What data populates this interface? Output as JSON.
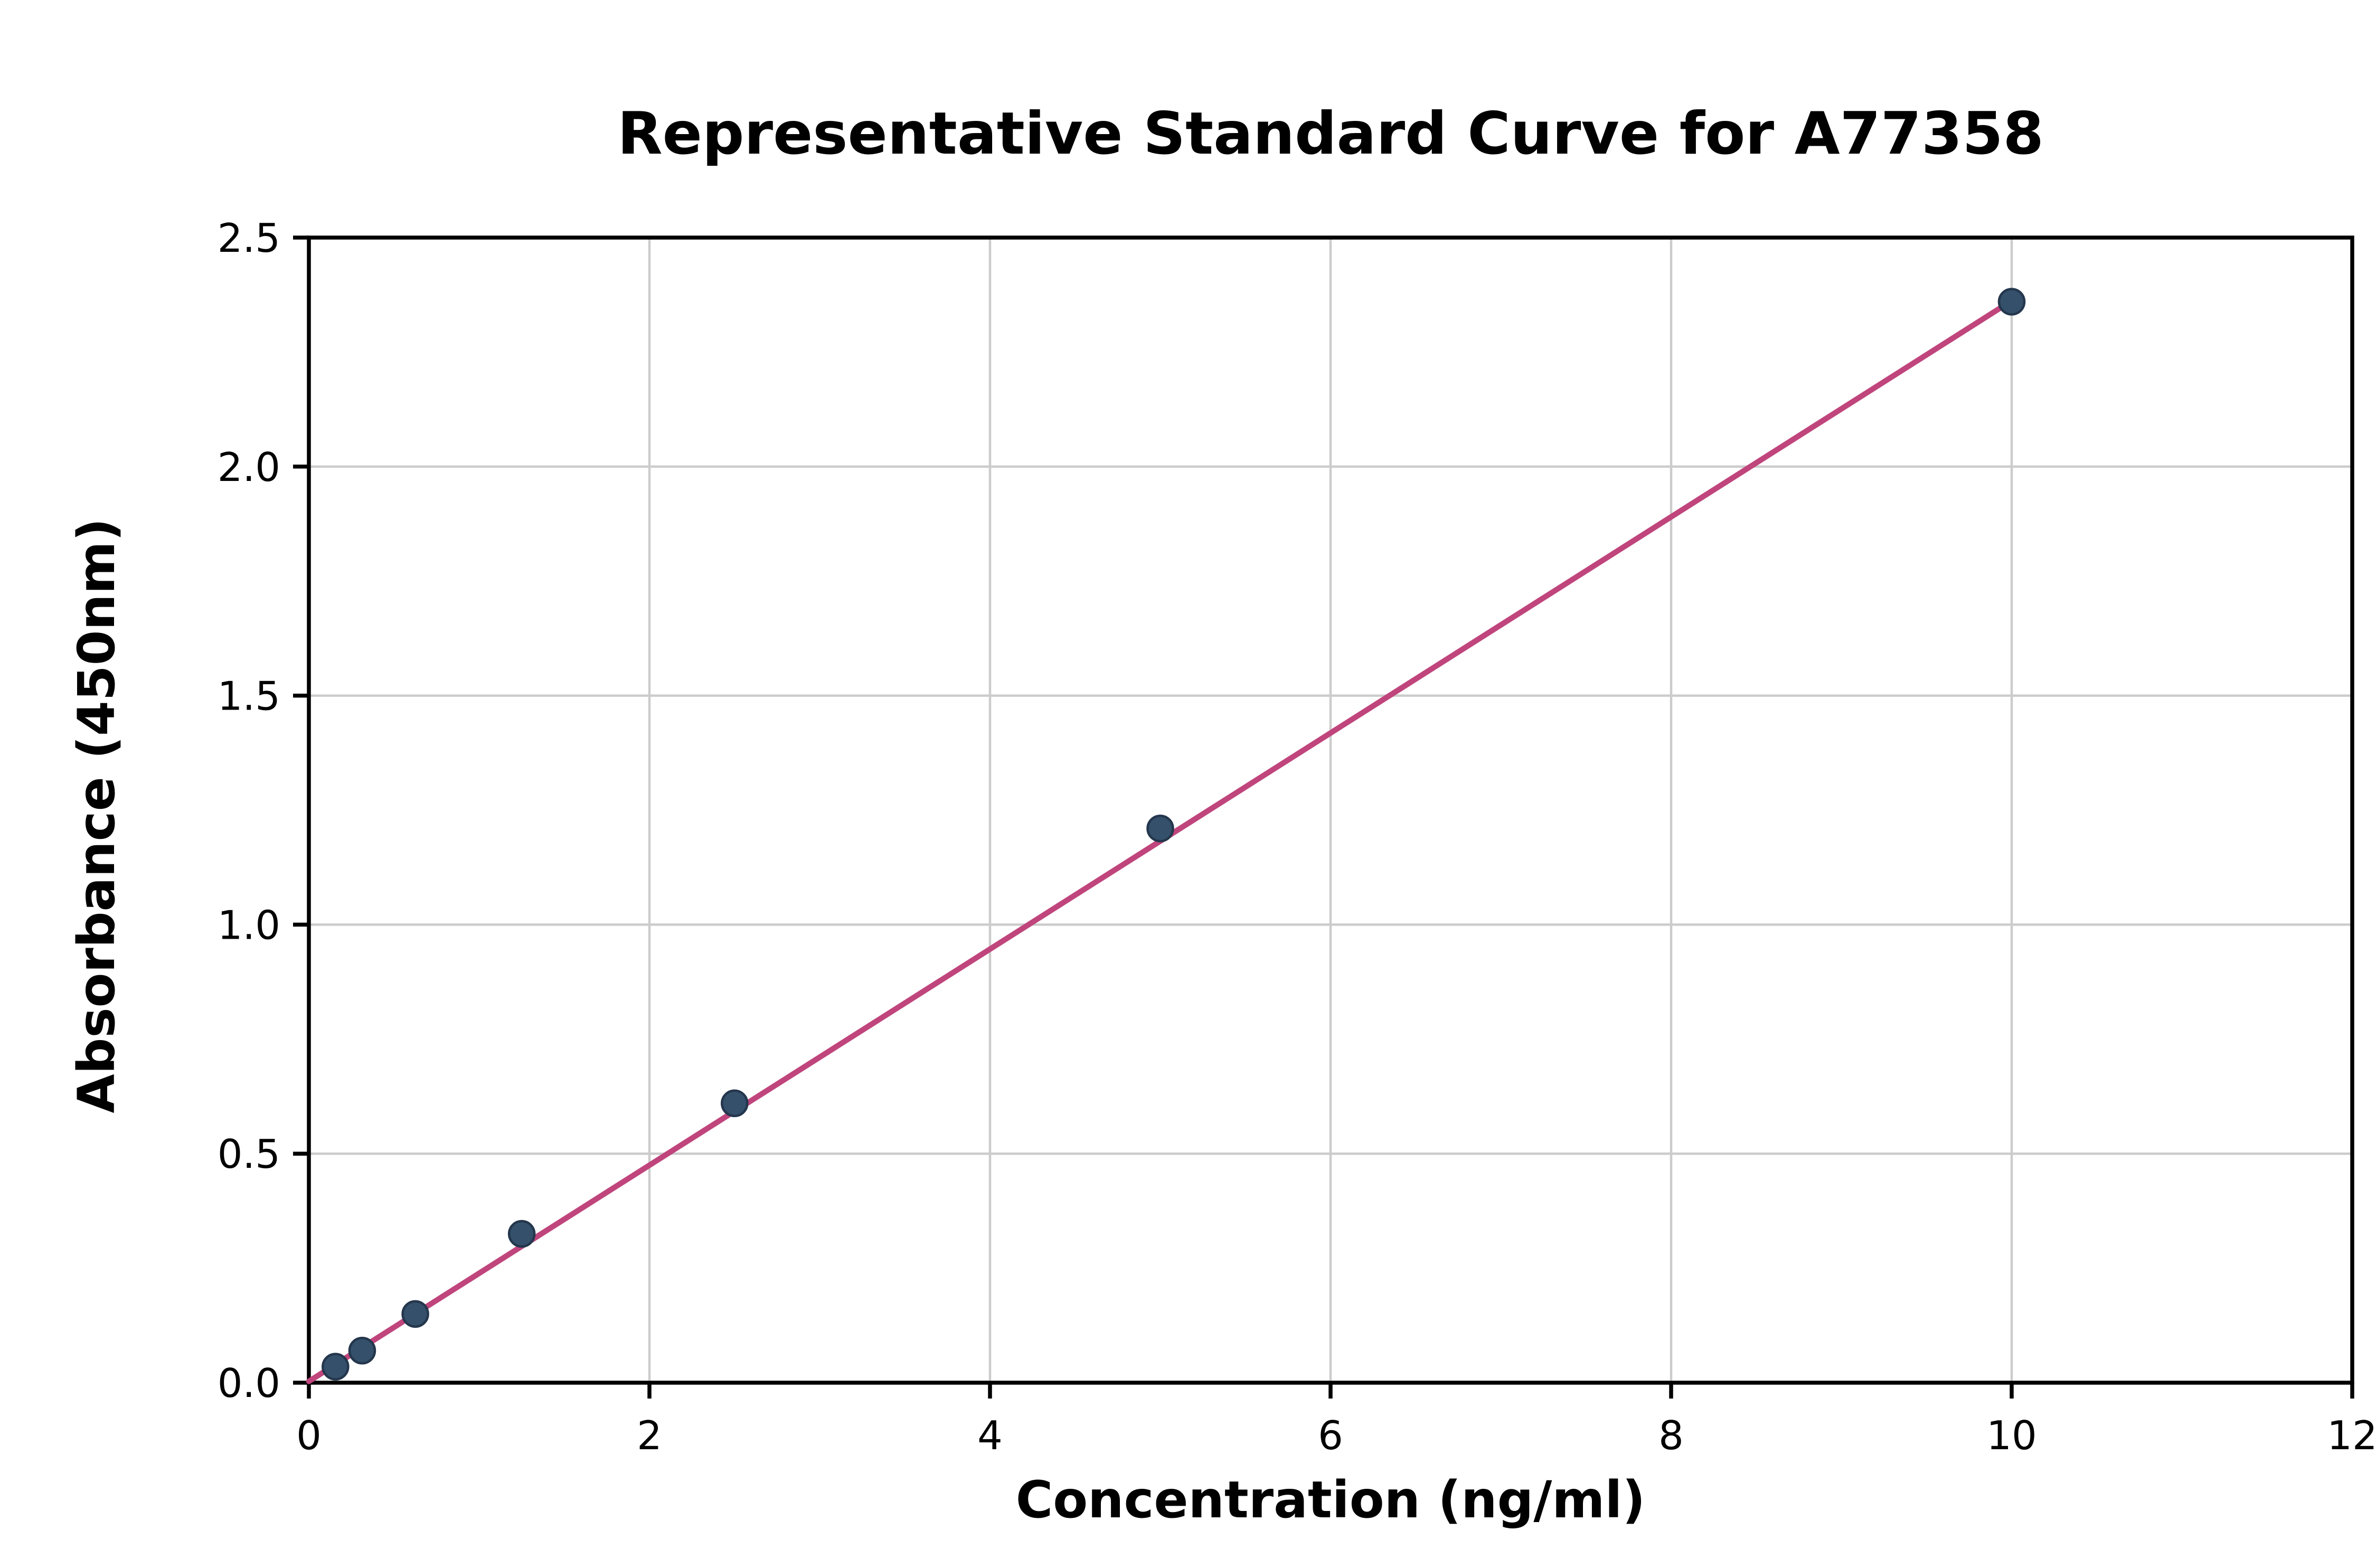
{
  "figure": {
    "background": "#ffffff"
  },
  "chart_data": {
    "type": "scatter",
    "title": "Representative Standard Curve for A77358",
    "xlabel": "Concentration (ng/ml)",
    "ylabel": "Absorbance (450nm)",
    "xlim": [
      0,
      12
    ],
    "ylim": [
      0,
      2.5
    ],
    "grid": true,
    "legend": "none",
    "grid_color": "#cccccc",
    "axis_color": "#000000",
    "line_color": "#c0457c",
    "point_color": "#35506b",
    "point_edge_color": "#24374d",
    "xticks": [
      {
        "v": 0,
        "label": "0"
      },
      {
        "v": 2,
        "label": "2"
      },
      {
        "v": 4,
        "label": "4"
      },
      {
        "v": 6,
        "label": "6"
      },
      {
        "v": 8,
        "label": "8"
      },
      {
        "v": 10,
        "label": "10"
      },
      {
        "v": 12,
        "label": "12"
      }
    ],
    "yticks": [
      {
        "v": 0,
        "label": "0.0"
      },
      {
        "v": 0.5,
        "label": "0.5"
      },
      {
        "v": 1,
        "label": "1.0"
      },
      {
        "v": 1.5,
        "label": "1.5"
      },
      {
        "v": 2,
        "label": "2.0"
      },
      {
        "v": 2.5,
        "label": "2.5"
      }
    ],
    "points": [
      {
        "x": 0.156,
        "y": 0.035
      },
      {
        "x": 0.313,
        "y": 0.07
      },
      {
        "x": 0.625,
        "y": 0.15
      },
      {
        "x": 1.25,
        "y": 0.325
      },
      {
        "x": 2.5,
        "y": 0.61
      },
      {
        "x": 5,
        "y": 1.21
      },
      {
        "x": 10,
        "y": 2.36
      }
    ],
    "trendline": {
      "x": [
        0,
        10
      ],
      "y": [
        0.003,
        2.362
      ]
    }
  }
}
